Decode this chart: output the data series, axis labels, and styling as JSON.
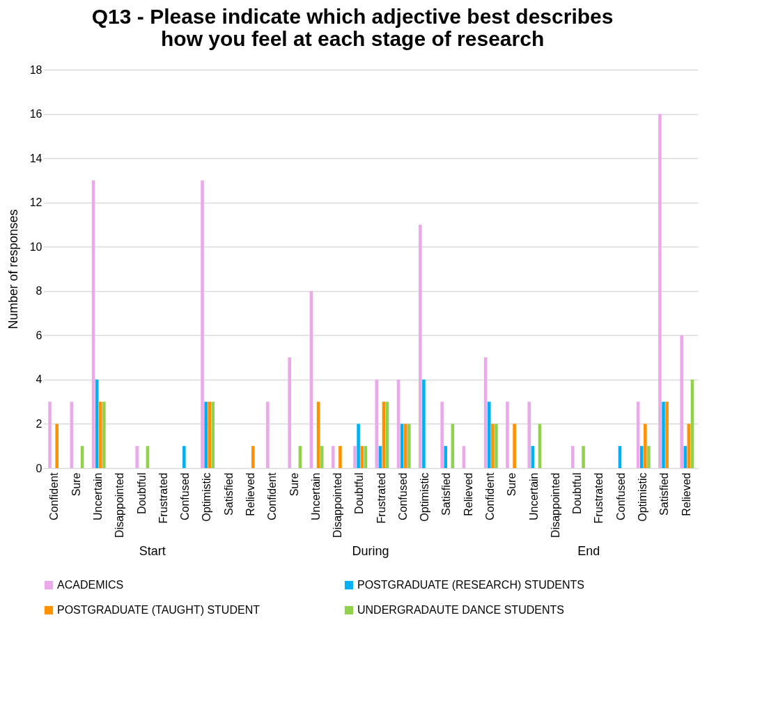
{
  "chart_data": {
    "type": "bar",
    "title": "Q13 - Please indicate which adjective best describes how you feel at each stage of research",
    "ylabel": "Number of responses",
    "categories": [
      "Confident",
      "Sure",
      "Uncertain",
      "Disappointed",
      "Doubtful",
      "Frustrated",
      "Confused",
      "Optimistic",
      "Satisfied",
      "Relieved",
      "Confident",
      "Sure",
      "Uncertain",
      "Disappointed",
      "Doubtful",
      "Frustrated",
      "Confused",
      "Optimistic",
      "Satisfied",
      "Relieved",
      "Confident",
      "Sure",
      "Uncertain",
      "Disappointed",
      "Doubtful",
      "Frustrated",
      "Confused",
      "Optimistic",
      "Satisfied",
      "Relieved"
    ],
    "annotations": [
      "Start",
      "During",
      "End"
    ],
    "series": [
      {
        "name": "ACADEMICS",
        "color": "#eaa9e8",
        "values": [
          3,
          3,
          13,
          0,
          1,
          0,
          0,
          13,
          0,
          0,
          3,
          5,
          8,
          1,
          1,
          4,
          4,
          11,
          3,
          1,
          5,
          3,
          3,
          0,
          1,
          0,
          0,
          3,
          16,
          6
        ]
      },
      {
        "name": "POSTGRADUATE (RESEARCH) STUDENTS",
        "color": "#00b0f0",
        "values": [
          0,
          0,
          4,
          0,
          0,
          0,
          1,
          3,
          0,
          0,
          0,
          0,
          0,
          0,
          2,
          1,
          2,
          4,
          1,
          0,
          3,
          0,
          1,
          0,
          0,
          0,
          1,
          1,
          3,
          1
        ]
      },
      {
        "name": "POSTGRADUATE (TAUGHT) STUDENT",
        "color": "#ff9100",
        "values": [
          2,
          0,
          3,
          0,
          0,
          0,
          0,
          3,
          0,
          1,
          0,
          0,
          3,
          1,
          1,
          3,
          2,
          0,
          0,
          0,
          2,
          2,
          0,
          0,
          0,
          0,
          0,
          2,
          3,
          2
        ]
      },
      {
        "name": "UNDERGRADAUTE DANCE STUDENTS",
        "color": "#92d050",
        "values": [
          0,
          1,
          3,
          0,
          1,
          0,
          0,
          3,
          0,
          0,
          0,
          1,
          1,
          0,
          1,
          3,
          2,
          0,
          2,
          0,
          2,
          0,
          2,
          0,
          1,
          0,
          0,
          1,
          0,
          4
        ]
      }
    ],
    "ylim": [
      0,
      18
    ],
    "yticks": [
      0,
      2,
      4,
      6,
      8,
      10,
      12,
      14,
      16,
      18
    ],
    "grid": "y",
    "legend": "bottom"
  }
}
